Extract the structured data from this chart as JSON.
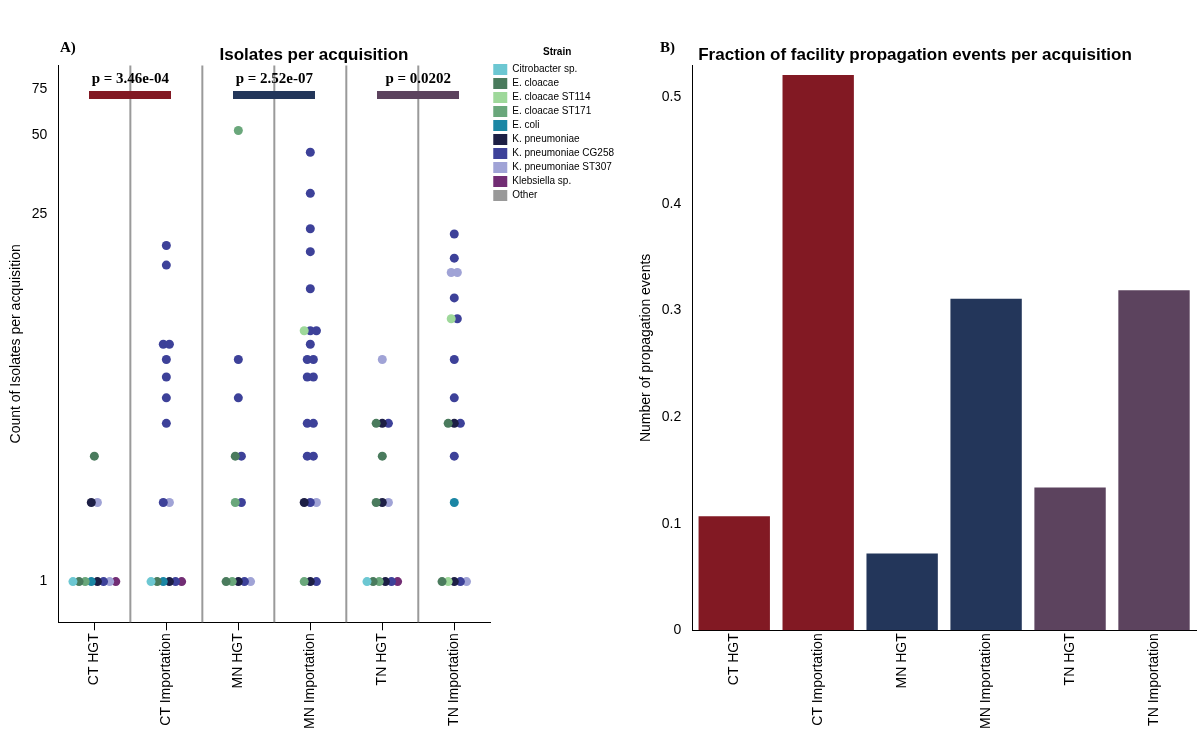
{
  "chart_data": [
    {
      "type": "scatter",
      "title": "Isolates per acquisition",
      "ylabel": "Count of Isolates per acquisition",
      "legend_title": "Strain",
      "categories": [
        "CT HGT",
        "CT Importation",
        "MN HGT",
        "MN Importation",
        "TN HGT",
        "TN Importation"
      ],
      "log": "y",
      "ylim": [
        0.7,
        92
      ],
      "yticks": [
        1,
        25,
        50,
        75
      ],
      "grid": "x",
      "legend": "top right",
      "marker": "circle",
      "annotations": [
        "A)",
        "p = 3.46e-04",
        "p = 2.52e-07",
        "p = 0.0202"
      ],
      "series": [
        {
          "name": "Citrobacter sp.",
          "color": "#6cc7d2",
          "x": [
            "CT HGT",
            "CT Importation",
            "TN HGT"
          ],
          "values": [
            1,
            1,
            1
          ]
        },
        {
          "name": "E. cloacae",
          "color": "#4a7b5d",
          "x": [
            "CT HGT",
            "CT HGT",
            "CT Importation",
            "MN HGT",
            "MN HGT",
            "TN HGT",
            "TN HGT",
            "TN HGT",
            "TN HGT",
            "TN Importation",
            "TN Importation"
          ],
          "values": [
            3,
            1,
            1,
            3,
            1,
            4,
            3,
            2,
            1,
            4,
            1
          ]
        },
        {
          "name": "E. cloacae ST114",
          "color": "#9ed89a",
          "x": [
            "MN Importation",
            "TN Importation",
            "TN Importation"
          ],
          "values": [
            9,
            10,
            1
          ]
        },
        {
          "name": "E. cloacae ST171",
          "color": "#6aa77b",
          "x": [
            "CT HGT",
            "MN HGT",
            "MN HGT",
            "MN HGT",
            "MN Importation",
            "TN HGT"
          ],
          "values": [
            1,
            52,
            2,
            1,
            1,
            1
          ]
        },
        {
          "name": "E. coli",
          "color": "#1b86a4",
          "x": [
            "CT HGT",
            "CT Importation",
            "TN Importation"
          ],
          "values": [
            1,
            1,
            2
          ]
        },
        {
          "name": "K. pneumoniae",
          "color": "#1d1f45",
          "x": [
            "CT HGT",
            "CT HGT",
            "CT Importation",
            "MN HGT",
            "MN Importation",
            "MN Importation",
            "TN HGT",
            "TN HGT",
            "TN HGT",
            "TN Importation",
            "TN Importation"
          ],
          "values": [
            2,
            1,
            1,
            1,
            2,
            1,
            4,
            2,
            1,
            4,
            1
          ]
        },
        {
          "name": "K. pneumoniae CG258",
          "color": "#3d4199",
          "x": [
            "CT HGT",
            "CT Importation",
            "CT Importation",
            "CT Importation",
            "CT Importation",
            "CT Importation",
            "CT Importation",
            "CT Importation",
            "CT Importation",
            "CT Importation",
            "CT Importation",
            "MN HGT",
            "MN HGT",
            "MN HGT",
            "MN HGT",
            "MN HGT",
            "MN Importation",
            "MN Importation",
            "MN Importation",
            "MN Importation",
            "MN Importation",
            "MN Importation",
            "MN Importation",
            "MN Importation",
            "MN Importation",
            "MN Importation",
            "MN Importation",
            "MN Importation",
            "MN Importation",
            "MN Importation",
            "MN Importation",
            "MN Importation",
            "MN Importation",
            "MN Importation",
            "TN HGT",
            "TN HGT",
            "TN Importation",
            "TN Importation",
            "TN Importation",
            "TN Importation",
            "TN Importation",
            "TN Importation",
            "TN Importation",
            "TN Importation",
            "TN Importation"
          ],
          "values": [
            1,
            19,
            16,
            8,
            8,
            7,
            6,
            5,
            4,
            2,
            1,
            7,
            5,
            3,
            2,
            1,
            43,
            30,
            22,
            18,
            13,
            9,
            9,
            8,
            7,
            7,
            6,
            6,
            4,
            4,
            3,
            3,
            2,
            1,
            4,
            1,
            21,
            17,
            12,
            10,
            7,
            5,
            4,
            3,
            1
          ]
        },
        {
          "name": "K. pneumoniae ST307",
          "color": "#a0a3d6",
          "x": [
            "CT HGT",
            "CT HGT",
            "CT Importation",
            "MN HGT",
            "MN Importation",
            "TN HGT",
            "TN HGT",
            "TN Importation",
            "TN Importation",
            "TN Importation"
          ],
          "values": [
            2,
            1,
            2,
            1,
            2,
            7,
            2,
            15,
            15,
            1
          ]
        },
        {
          "name": "Klebsiella sp.",
          "color": "#722d74",
          "x": [
            "CT HGT",
            "CT Importation",
            "TN HGT"
          ],
          "values": [
            1,
            1,
            1
          ]
        },
        {
          "name": "Other",
          "color": "#999999",
          "values": [
            null,
            null,
            null,
            null,
            null,
            null
          ]
        }
      ]
    },
    {
      "type": "bar",
      "title": "Fraction of facility propagation events per acquisition",
      "ylabel": "Number of propagation events",
      "categories": [
        "CT HGT",
        "CT Importation",
        "MN HGT",
        "MN Importation",
        "TN HGT",
        "TN Importation"
      ],
      "values": [
        0.107,
        0.521,
        0.072,
        0.311,
        0.134,
        0.319
      ],
      "colors": [
        "#821923",
        "#821923",
        "#23365a",
        "#23365a",
        "#5c435e",
        "#5c435e"
      ],
      "ylim": [
        0,
        0.53
      ],
      "yticks": [
        0,
        0.1,
        0.2,
        0.3,
        0.4,
        0.5
      ],
      "grid": false,
      "legend": false,
      "annotations": [
        "B)"
      ]
    }
  ]
}
